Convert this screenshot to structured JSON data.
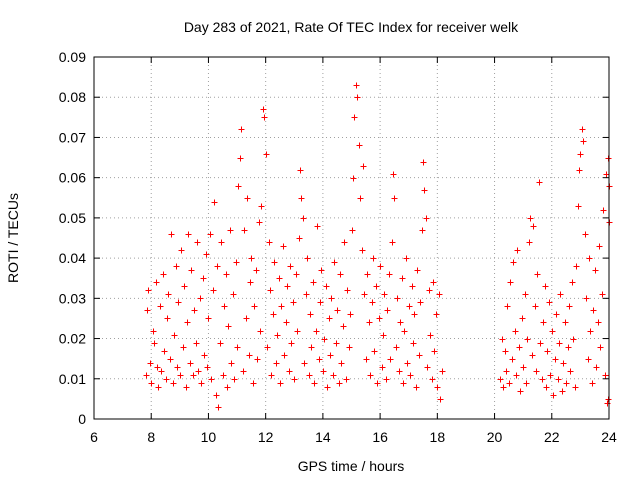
{
  "chart_data": {
    "type": "scatter",
    "title": "Day 283 of 2021, Rate Of TEC Index for receiver welk",
    "xlabel": "GPS time / hours",
    "ylabel": "ROTI / TECUs",
    "xlim": [
      6,
      24
    ],
    "ylim": [
      0,
      0.09
    ],
    "xticks": [
      6,
      8,
      10,
      12,
      14,
      16,
      18,
      20,
      22,
      24
    ],
    "xtick_labels": [
      "6",
      "8",
      "10",
      "12",
      "14",
      "16",
      "18",
      "20",
      "22",
      "24"
    ],
    "yticks": [
      0,
      0.01,
      0.02,
      0.03,
      0.04,
      0.05,
      0.06,
      0.07,
      0.08,
      0.09
    ],
    "ytick_labels": [
      "0",
      "0.01",
      "0.02",
      "0.03",
      "0.04",
      "0.05",
      "0.06",
      "0.07",
      "0.08",
      "0.09"
    ],
    "grid": true,
    "marker": "+",
    "marker_color": "#ff0000",
    "series": [
      {
        "name": "ROTI",
        "points": [
          [
            7.8,
            0.011
          ],
          [
            7.85,
            0.027
          ],
          [
            7.9,
            0.032
          ],
          [
            7.95,
            0.014
          ],
          [
            8.0,
            0.009
          ],
          [
            8.05,
            0.022
          ],
          [
            8.1,
            0.019
          ],
          [
            8.15,
            0.034
          ],
          [
            8.2,
            0.013
          ],
          [
            8.25,
            0.008
          ],
          [
            8.3,
            0.028
          ],
          [
            8.35,
            0.012
          ],
          [
            8.4,
            0.036
          ],
          [
            8.45,
            0.017
          ],
          [
            8.5,
            0.01
          ],
          [
            8.55,
            0.025
          ],
          [
            8.6,
            0.031
          ],
          [
            8.65,
            0.015
          ],
          [
            8.7,
            0.046
          ],
          [
            8.75,
            0.009
          ],
          [
            8.8,
            0.021
          ],
          [
            8.85,
            0.038
          ],
          [
            8.9,
            0.013
          ],
          [
            8.95,
            0.029
          ],
          [
            9.0,
            0.011
          ],
          [
            9.05,
            0.042
          ],
          [
            9.1,
            0.018
          ],
          [
            9.15,
            0.033
          ],
          [
            9.2,
            0.008
          ],
          [
            9.25,
            0.024
          ],
          [
            9.3,
            0.046
          ],
          [
            9.35,
            0.014
          ],
          [
            9.4,
            0.037
          ],
          [
            9.45,
            0.011
          ],
          [
            9.5,
            0.027
          ],
          [
            9.55,
            0.019
          ],
          [
            9.6,
            0.044
          ],
          [
            9.65,
            0.012
          ],
          [
            9.7,
            0.03
          ],
          [
            9.75,
            0.009
          ],
          [
            9.8,
            0.035
          ],
          [
            9.85,
            0.016
          ],
          [
            9.9,
            0.041
          ],
          [
            9.95,
            0.013
          ],
          [
            10.0,
            0.025
          ],
          [
            10.05,
            0.046
          ],
          [
            10.1,
            0.01
          ],
          [
            10.15,
            0.032
          ],
          [
            10.2,
            0.054
          ],
          [
            10.25,
            0.006
          ],
          [
            10.3,
            0.038
          ],
          [
            10.35,
            0.003
          ],
          [
            10.4,
            0.019
          ],
          [
            10.45,
            0.044
          ],
          [
            10.5,
            0.011
          ],
          [
            10.55,
            0.028
          ],
          [
            10.6,
            0.036
          ],
          [
            10.65,
            0.008
          ],
          [
            10.7,
            0.023
          ],
          [
            10.75,
            0.047
          ],
          [
            10.8,
            0.014
          ],
          [
            10.85,
            0.031
          ],
          [
            10.9,
            0.01
          ],
          [
            10.95,
            0.039
          ],
          [
            11.0,
            0.018
          ],
          [
            11.05,
            0.058
          ],
          [
            11.1,
            0.065
          ],
          [
            11.15,
            0.072
          ],
          [
            11.2,
            0.012
          ],
          [
            11.25,
            0.047
          ],
          [
            11.3,
            0.025
          ],
          [
            11.35,
            0.055
          ],
          [
            11.4,
            0.016
          ],
          [
            11.45,
            0.034
          ],
          [
            11.5,
            0.04
          ],
          [
            11.55,
            0.009
          ],
          [
            11.6,
            0.028
          ],
          [
            11.65,
            0.037
          ],
          [
            11.7,
            0.015
          ],
          [
            11.75,
            0.049
          ],
          [
            11.8,
            0.022
          ],
          [
            11.85,
            0.053
          ],
          [
            11.9,
            0.077
          ],
          [
            11.95,
            0.075
          ],
          [
            12.0,
            0.066
          ],
          [
            12.05,
            0.018
          ],
          [
            12.1,
            0.044
          ],
          [
            12.15,
            0.032
          ],
          [
            12.2,
            0.011
          ],
          [
            12.25,
            0.026
          ],
          [
            12.3,
            0.039
          ],
          [
            12.35,
            0.014
          ],
          [
            12.4,
            0.021
          ],
          [
            12.45,
            0.035
          ],
          [
            12.5,
            0.009
          ],
          [
            12.55,
            0.028
          ],
          [
            12.6,
            0.043
          ],
          [
            12.65,
            0.016
          ],
          [
            12.7,
            0.024
          ],
          [
            12.75,
            0.033
          ],
          [
            12.8,
            0.012
          ],
          [
            12.85,
            0.038
          ],
          [
            12.9,
            0.019
          ],
          [
            12.95,
            0.029
          ],
          [
            13.0,
            0.01
          ],
          [
            13.05,
            0.036
          ],
          [
            13.1,
            0.022
          ],
          [
            13.15,
            0.045
          ],
          [
            13.2,
            0.062
          ],
          [
            13.25,
            0.055
          ],
          [
            13.3,
            0.05
          ],
          [
            13.35,
            0.014
          ],
          [
            13.4,
            0.031
          ],
          [
            13.45,
            0.04
          ],
          [
            13.5,
            0.011
          ],
          [
            13.55,
            0.026
          ],
          [
            13.6,
            0.018
          ],
          [
            13.65,
            0.034
          ],
          [
            13.7,
            0.009
          ],
          [
            13.75,
            0.022
          ],
          [
            13.8,
            0.048
          ],
          [
            13.85,
            0.015
          ],
          [
            13.9,
            0.029
          ],
          [
            13.95,
            0.037
          ],
          [
            14.0,
            0.012
          ],
          [
            14.05,
            0.02
          ],
          [
            14.1,
            0.033
          ],
          [
            14.15,
            0.008
          ],
          [
            14.2,
            0.025
          ],
          [
            14.25,
            0.016
          ],
          [
            14.3,
            0.03
          ],
          [
            14.35,
            0.011
          ],
          [
            14.4,
            0.039
          ],
          [
            14.45,
            0.019
          ],
          [
            14.5,
            0.027
          ],
          [
            14.55,
            0.009
          ],
          [
            14.6,
            0.036
          ],
          [
            14.65,
            0.014
          ],
          [
            14.7,
            0.023
          ],
          [
            14.75,
            0.044
          ],
          [
            14.8,
            0.01
          ],
          [
            14.85,
            0.032
          ],
          [
            14.9,
            0.018
          ],
          [
            14.95,
            0.026
          ],
          [
            15.0,
            0.047
          ],
          [
            15.05,
            0.06
          ],
          [
            15.1,
            0.075
          ],
          [
            15.15,
            0.083
          ],
          [
            15.2,
            0.08
          ],
          [
            15.25,
            0.068
          ],
          [
            15.3,
            0.055
          ],
          [
            15.35,
            0.042
          ],
          [
            15.4,
            0.063
          ],
          [
            15.45,
            0.031
          ],
          [
            15.5,
            0.015
          ],
          [
            15.55,
            0.036
          ],
          [
            15.6,
            0.024
          ],
          [
            15.65,
            0.011
          ],
          [
            15.7,
            0.029
          ],
          [
            15.75,
            0.04
          ],
          [
            15.8,
            0.017
          ],
          [
            15.85,
            0.033
          ],
          [
            15.9,
            0.009
          ],
          [
            15.95,
            0.025
          ],
          [
            16.0,
            0.038
          ],
          [
            16.05,
            0.013
          ],
          [
            16.1,
            0.021
          ],
          [
            16.15,
            0.031
          ],
          [
            16.2,
            0.01
          ],
          [
            16.25,
            0.027
          ],
          [
            16.3,
            0.036
          ],
          [
            16.35,
            0.015
          ],
          [
            16.4,
            0.044
          ],
          [
            16.45,
            0.061
          ],
          [
            16.5,
            0.055
          ],
          [
            16.55,
            0.018
          ],
          [
            16.6,
            0.03
          ],
          [
            16.65,
            0.012
          ],
          [
            16.7,
            0.024
          ],
          [
            16.75,
            0.035
          ],
          [
            16.8,
            0.009
          ],
          [
            16.85,
            0.022
          ],
          [
            16.9,
            0.04
          ],
          [
            16.95,
            0.014
          ],
          [
            17.0,
            0.028
          ],
          [
            17.05,
            0.011
          ],
          [
            17.1,
            0.033
          ],
          [
            17.15,
            0.019
          ],
          [
            17.2,
            0.026
          ],
          [
            17.25,
            0.008
          ],
          [
            17.3,
            0.037
          ],
          [
            17.35,
            0.016
          ],
          [
            17.4,
            0.029
          ],
          [
            17.45,
            0.047
          ],
          [
            17.5,
            0.064
          ],
          [
            17.55,
            0.057
          ],
          [
            17.6,
            0.05
          ],
          [
            17.65,
            0.013
          ],
          [
            17.7,
            0.032
          ],
          [
            17.75,
            0.021
          ],
          [
            17.8,
            0.01
          ],
          [
            17.85,
            0.034
          ],
          [
            17.9,
            0.017
          ],
          [
            17.95,
            0.026
          ],
          [
            18.0,
            0.008
          ],
          [
            18.05,
            0.031
          ],
          [
            18.1,
            0.005
          ],
          [
            18.15,
            0.012
          ],
          [
            20.2,
            0.01
          ],
          [
            20.25,
            0.02
          ],
          [
            20.3,
            0.008
          ],
          [
            20.35,
            0.017
          ],
          [
            20.4,
            0.012
          ],
          [
            20.45,
            0.028
          ],
          [
            20.5,
            0.009
          ],
          [
            20.55,
            0.034
          ],
          [
            20.6,
            0.015
          ],
          [
            20.65,
            0.039
          ],
          [
            20.7,
            0.022
          ],
          [
            20.75,
            0.011
          ],
          [
            20.8,
            0.042
          ],
          [
            20.85,
            0.018
          ],
          [
            20.9,
            0.007
          ],
          [
            20.95,
            0.025
          ],
          [
            21.0,
            0.013
          ],
          [
            21.05,
            0.031
          ],
          [
            21.1,
            0.009
          ],
          [
            21.15,
            0.02
          ],
          [
            21.2,
            0.044
          ],
          [
            21.25,
            0.05
          ],
          [
            21.3,
            0.016
          ],
          [
            21.35,
            0.048
          ],
          [
            21.4,
            0.028
          ],
          [
            21.45,
            0.012
          ],
          [
            21.5,
            0.036
          ],
          [
            21.55,
            0.059
          ],
          [
            21.6,
            0.019
          ],
          [
            21.65,
            0.01
          ],
          [
            21.7,
            0.024
          ],
          [
            21.75,
            0.033
          ],
          [
            21.8,
            0.008
          ],
          [
            21.85,
            0.017
          ],
          [
            21.9,
            0.029
          ],
          [
            21.95,
            0.011
          ],
          [
            22.0,
            0.022
          ],
          [
            22.05,
            0.006
          ],
          [
            22.1,
            0.015
          ],
          [
            22.15,
            0.026
          ],
          [
            22.2,
            0.01
          ],
          [
            22.25,
            0.019
          ],
          [
            22.3,
            0.031
          ],
          [
            22.35,
            0.007
          ],
          [
            22.4,
            0.014
          ],
          [
            22.45,
            0.024
          ],
          [
            22.5,
            0.009
          ],
          [
            22.55,
            0.018
          ],
          [
            22.6,
            0.028
          ],
          [
            22.65,
            0.012
          ],
          [
            22.7,
            0.034
          ],
          [
            22.75,
            0.02
          ],
          [
            22.8,
            0.008
          ],
          [
            22.85,
            0.038
          ],
          [
            22.9,
            0.053
          ],
          [
            22.95,
            0.062
          ],
          [
            23.0,
            0.066
          ],
          [
            23.05,
            0.072
          ],
          [
            23.1,
            0.069
          ],
          [
            23.15,
            0.046
          ],
          [
            23.2,
            0.03
          ],
          [
            23.25,
            0.015
          ],
          [
            23.3,
            0.04
          ],
          [
            23.35,
            0.022
          ],
          [
            23.4,
            0.009
          ],
          [
            23.45,
            0.027
          ],
          [
            23.5,
            0.037
          ],
          [
            23.55,
            0.013
          ],
          [
            23.6,
            0.024
          ],
          [
            23.65,
            0.043
          ],
          [
            23.7,
            0.018
          ],
          [
            23.75,
            0.031
          ],
          [
            23.8,
            0.052
          ],
          [
            23.85,
            0.011
          ],
          [
            23.9,
            0.061
          ],
          [
            23.95,
            0.065
          ],
          [
            24.0,
            0.049
          ],
          [
            24.0,
            0.058
          ],
          [
            23.98,
            0.005
          ],
          [
            23.92,
            0.004
          ]
        ]
      }
    ]
  }
}
